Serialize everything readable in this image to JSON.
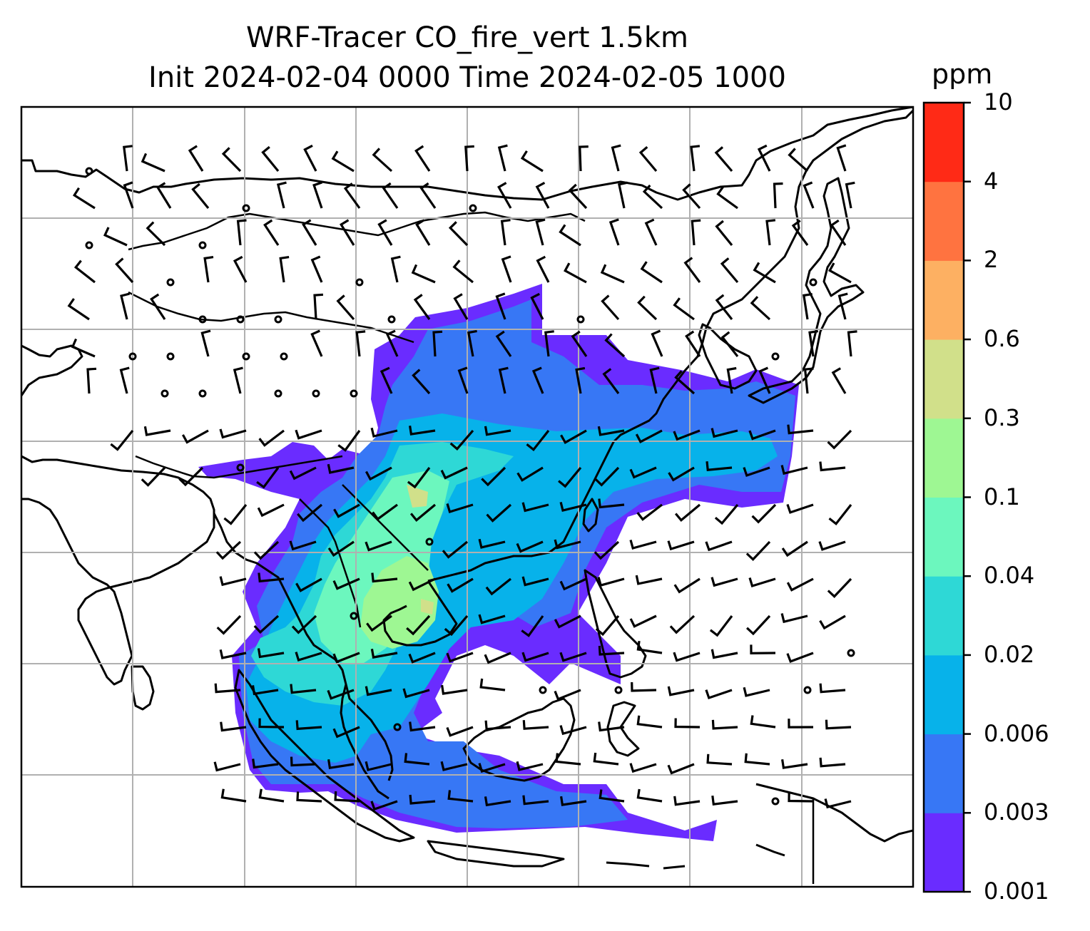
{
  "title": {
    "line1": "WRF-Tracer CO_fire_vert 1.5km",
    "line2": "Init 2024-02-04 0000 Time 2024-02-05 1000"
  },
  "colorbar": {
    "unit": "ppm",
    "levels": [
      "0.001",
      "0.003",
      "0.006",
      "0.02",
      "0.04",
      "0.1",
      "0.3",
      "0.6",
      "2",
      "4",
      "10"
    ],
    "colors": [
      "#6a2cff",
      "#3777f5",
      "#07b2ea",
      "#2ed8d6",
      "#6cf7be",
      "#9ef793",
      "#d1e08a",
      "#fdb062",
      "#ff7340",
      "#ff2a16"
    ]
  },
  "map": {
    "domain": "East and Southeast Asia",
    "fields": [
      "CO fire tracer concentration",
      "wind barbs",
      "coastlines",
      "lat/lon gridlines"
    ]
  }
}
